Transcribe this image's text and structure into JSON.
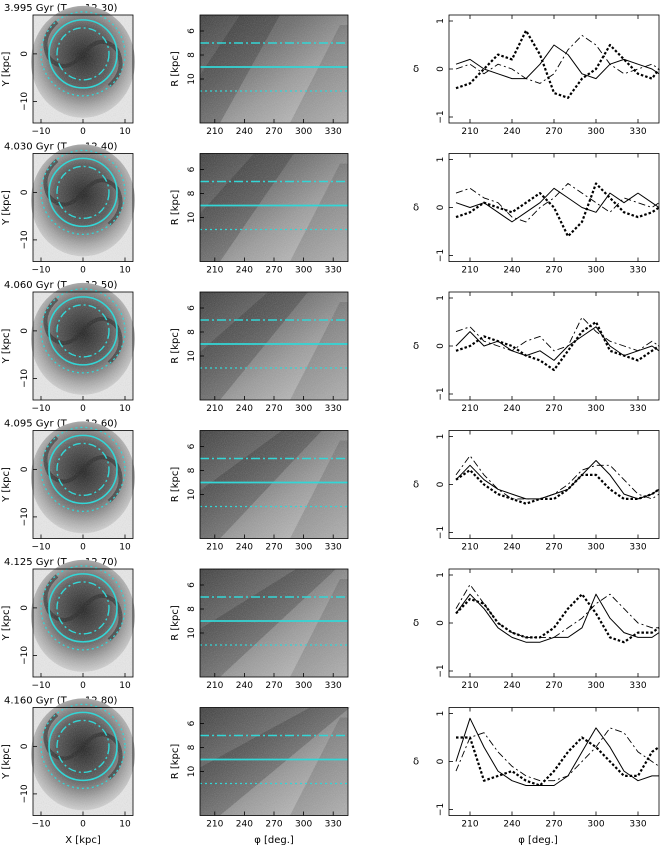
{
  "rows": [
    {
      "title": "3.995 Gyr (T",
      "sub": "rot",
      "eq": "=12.30)"
    },
    {
      "title": "4.030 Gyr (T",
      "sub": "rot",
      "eq": "=12.40)"
    },
    {
      "title": "4.060 Gyr (T",
      "sub": "rot",
      "eq": "=12.50)"
    },
    {
      "title": "4.095 Gyr (T",
      "sub": "rot",
      "eq": "=12.60)"
    },
    {
      "title": "4.125 Gyr (T",
      "sub": "rot",
      "eq": "=12.70)"
    },
    {
      "title": "4.160 Gyr (T",
      "sub": "rot",
      "eq": "=12.80)"
    }
  ],
  "left_axes": {
    "xlabel": "X [kpc]",
    "ylabel": "Y [kpc]",
    "xticks": [
      "−10",
      "0",
      "10"
    ],
    "yticks": [
      "0",
      "−10"
    ]
  },
  "mid_axes": {
    "xlabel": "φ [deg.]",
    "ylabel": "R [kpc]",
    "xticks": [
      "210",
      "240",
      "270",
      "300",
      "330"
    ],
    "yticks": [
      "6",
      "8",
      "10"
    ]
  },
  "right_axes": {
    "xlabel": "φ [deg.]",
    "ylabel": "δ",
    "xticks": [
      "210",
      "240",
      "270",
      "300",
      "330"
    ],
    "yticks": [
      "1",
      "0",
      "−1"
    ]
  },
  "colors": {
    "cyan": "#33d6d6",
    "ink": "#000000"
  },
  "chart_data": {
    "type": "line",
    "title": "",
    "xlabel": "φ [deg.]",
    "ylabel": "δ",
    "xlim": [
      195,
      345
    ],
    "ylim": [
      -1,
      1
    ],
    "x": [
      200,
      210,
      220,
      230,
      240,
      250,
      260,
      270,
      280,
      290,
      300,
      310,
      320,
      330,
      340,
      345
    ],
    "panels": [
      {
        "series": [
          {
            "style": "solid",
            "values": [
              0.1,
              0.2,
              0.0,
              -0.1,
              -0.2,
              -0.2,
              0.1,
              0.5,
              0.3,
              -0.1,
              -0.2,
              0.1,
              0.2,
              0.1,
              0.0,
              -0.1
            ]
          },
          {
            "style": "dashdot",
            "values": [
              0.0,
              0.1,
              -0.1,
              0.1,
              0.0,
              -0.2,
              -0.3,
              -0.1,
              0.4,
              0.7,
              0.5,
              0.1,
              -0.1,
              0.0,
              0.1,
              0.0
            ]
          },
          {
            "style": "dotted",
            "values": [
              -0.4,
              -0.3,
              0.0,
              0.3,
              0.2,
              0.8,
              0.3,
              -0.5,
              -0.6,
              -0.2,
              0.0,
              0.5,
              0.2,
              -0.1,
              -0.2,
              0.0
            ]
          }
        ]
      },
      {
        "series": [
          {
            "style": "solid",
            "values": [
              0.1,
              0.0,
              0.1,
              -0.1,
              -0.3,
              -0.1,
              0.1,
              0.4,
              0.2,
              0.0,
              -0.1,
              0.3,
              0.1,
              0.3,
              0.1,
              0.0
            ]
          },
          {
            "style": "dashdot",
            "values": [
              0.3,
              0.4,
              0.2,
              0.1,
              -0.2,
              -0.3,
              0.0,
              0.2,
              0.5,
              0.3,
              0.1,
              -0.1,
              0.2,
              0.1,
              0.0,
              0.1
            ]
          },
          {
            "style": "dotted",
            "values": [
              -0.2,
              -0.1,
              0.1,
              0.0,
              -0.1,
              0.1,
              0.3,
              0.0,
              -0.6,
              -0.3,
              0.5,
              0.2,
              -0.1,
              -0.2,
              -0.1,
              0.0
            ]
          }
        ]
      },
      {
        "series": [
          {
            "style": "solid",
            "values": [
              0.0,
              0.3,
              0.0,
              0.1,
              -0.1,
              -0.2,
              -0.1,
              -0.3,
              0.0,
              0.2,
              0.4,
              0.0,
              -0.2,
              -0.1,
              0.0,
              -0.1
            ]
          },
          {
            "style": "dashdot",
            "values": [
              0.3,
              0.4,
              0.1,
              0.0,
              -0.1,
              0.1,
              0.2,
              -0.1,
              0.0,
              0.6,
              0.3,
              0.1,
              0.0,
              -0.1,
              0.1,
              0.0
            ]
          },
          {
            "style": "dotted",
            "values": [
              -0.1,
              0.0,
              0.2,
              0.1,
              0.0,
              -0.2,
              -0.3,
              -0.5,
              -0.1,
              0.3,
              0.5,
              -0.1,
              -0.2,
              -0.3,
              -0.1,
              0.0
            ]
          }
        ]
      },
      {
        "series": [
          {
            "style": "solid",
            "values": [
              0.1,
              0.4,
              0.1,
              -0.1,
              -0.2,
              -0.3,
              -0.3,
              -0.2,
              -0.1,
              0.2,
              0.5,
              0.2,
              -0.2,
              -0.3,
              -0.2,
              -0.1
            ]
          },
          {
            "style": "dashdot",
            "values": [
              0.2,
              0.6,
              0.2,
              -0.1,
              -0.3,
              -0.3,
              -0.3,
              -0.2,
              0.0,
              0.3,
              0.4,
              0.4,
              0.1,
              -0.2,
              -0.3,
              -0.2
            ]
          },
          {
            "style": "dotted",
            "values": [
              0.1,
              0.3,
              0.0,
              -0.2,
              -0.3,
              -0.4,
              -0.3,
              -0.3,
              -0.1,
              0.2,
              0.2,
              -0.1,
              -0.3,
              -0.3,
              -0.2,
              -0.1
            ]
          }
        ]
      },
      {
        "series": [
          {
            "style": "solid",
            "values": [
              0.2,
              0.6,
              0.3,
              -0.1,
              -0.3,
              -0.4,
              -0.4,
              -0.3,
              -0.3,
              -0.1,
              0.6,
              0.1,
              -0.2,
              -0.3,
              -0.3,
              -0.2
            ]
          },
          {
            "style": "dashdot",
            "values": [
              0.3,
              0.8,
              0.4,
              0.0,
              -0.2,
              -0.3,
              -0.3,
              -0.3,
              -0.1,
              0.1,
              0.4,
              0.6,
              0.3,
              0.0,
              -0.1,
              -0.1
            ]
          },
          {
            "style": "dotted",
            "values": [
              0.2,
              0.5,
              0.4,
              0.0,
              -0.2,
              -0.3,
              -0.3,
              -0.1,
              0.3,
              0.6,
              0.2,
              -0.3,
              -0.4,
              -0.2,
              -0.2,
              -0.1
            ]
          }
        ]
      },
      {
        "series": [
          {
            "style": "solid",
            "values": [
              0.0,
              0.9,
              0.3,
              -0.2,
              -0.4,
              -0.5,
              -0.5,
              -0.5,
              -0.3,
              0.2,
              0.7,
              0.3,
              -0.2,
              -0.4,
              -0.3,
              -0.3
            ]
          },
          {
            "style": "dashdot",
            "values": [
              -0.2,
              0.5,
              0.6,
              0.2,
              -0.1,
              -0.3,
              -0.4,
              -0.4,
              -0.3,
              0.0,
              0.3,
              0.7,
              0.6,
              0.2,
              0.0,
              -0.1
            ]
          },
          {
            "style": "dotted",
            "values": [
              0.5,
              0.5,
              -0.4,
              -0.3,
              -0.2,
              -0.4,
              -0.5,
              -0.2,
              0.2,
              0.5,
              0.3,
              0.0,
              -0.3,
              -0.3,
              0.2,
              0.3
            ]
          }
        ]
      }
    ]
  }
}
